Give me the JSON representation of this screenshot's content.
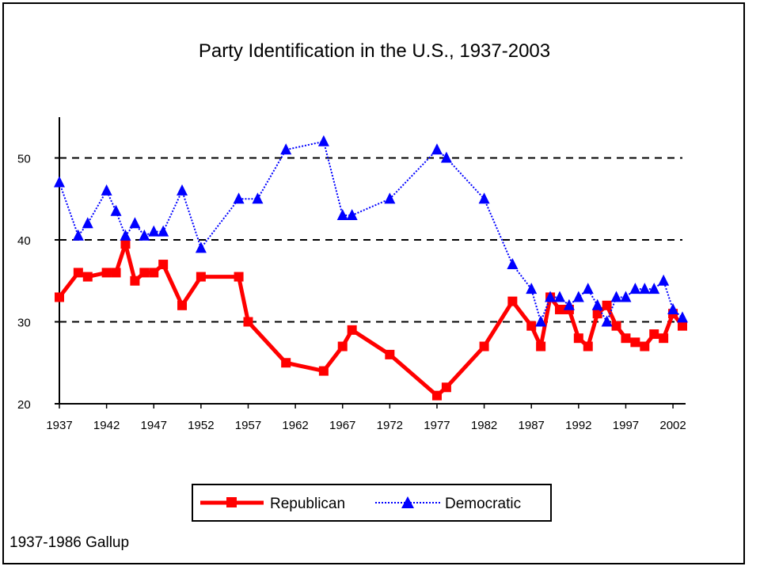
{
  "chart_data": {
    "type": "line",
    "title": "Party Identification in the U.S., 1937-2003",
    "xlabel": "",
    "ylabel": "",
    "xlim": [
      1937,
      2003
    ],
    "ylim": [
      20,
      55
    ],
    "y_ticks": [
      20,
      30,
      40,
      50
    ],
    "x_ticks": [
      1937,
      1942,
      1947,
      1952,
      1957,
      1962,
      1967,
      1972,
      1977,
      1982,
      1987,
      1992,
      1997,
      2002
    ],
    "x_tick_labels": [
      "1937",
      "1942",
      "1947",
      "1952",
      "1957",
      "1962",
      "1967",
      "1972",
      "1977",
      "1982",
      "1987",
      "1992",
      "1997",
      "2002"
    ],
    "gridlines": [
      30,
      40,
      50
    ],
    "grid": "horizontal dashed",
    "legend_position": "bottom",
    "series": [
      {
        "name": "Republican",
        "color": "#ff0000",
        "style": "solid",
        "marker": "square",
        "x": [
          1937,
          1939,
          1940,
          1942,
          1943,
          1944,
          1945,
          1946,
          1947,
          1948,
          1950,
          1952,
          1956,
          1957,
          1961,
          1965,
          1967,
          1968,
          1972,
          1977,
          1978,
          1982,
          1985,
          1987,
          1988,
          1989,
          1990,
          1991,
          1992,
          1993,
          1994,
          1995,
          1996,
          1997,
          1998,
          1999,
          2000,
          2001,
          2002,
          2003
        ],
        "y": [
          33,
          36,
          35.5,
          36,
          36,
          39.5,
          35,
          36,
          36,
          37,
          32,
          35.5,
          35.5,
          30,
          25,
          24,
          27,
          29,
          26,
          21,
          22,
          27,
          32.5,
          29.5,
          27,
          33,
          31.5,
          31.5,
          28,
          27,
          31,
          32,
          29.5,
          28,
          27.5,
          27,
          28.5,
          28,
          31,
          29.5
        ]
      },
      {
        "name": "Democratic",
        "color": "#0000ff",
        "style": "dotted",
        "marker": "triangle",
        "x": [
          1937,
          1939,
          1940,
          1942,
          1943,
          1944,
          1945,
          1946,
          1947,
          1948,
          1950,
          1952,
          1956,
          1958,
          1961,
          1965,
          1967,
          1968,
          1972,
          1977,
          1978,
          1982,
          1985,
          1987,
          1988,
          1989,
          1990,
          1991,
          1992,
          1993,
          1994,
          1995,
          1996,
          1997,
          1998,
          1999,
          2000,
          2001,
          2002,
          2003
        ],
        "y": [
          47,
          40.5,
          42,
          46,
          43.5,
          40.5,
          42,
          40.5,
          41,
          41,
          46,
          39,
          45,
          45,
          51,
          52,
          43,
          43,
          45,
          51,
          50,
          45,
          37,
          34,
          30,
          33,
          33,
          32,
          33,
          34,
          32,
          30,
          33,
          33,
          34,
          34,
          34,
          35,
          31.5,
          30.5
        ]
      }
    ]
  },
  "source_note": "1937-1986 Gallup"
}
